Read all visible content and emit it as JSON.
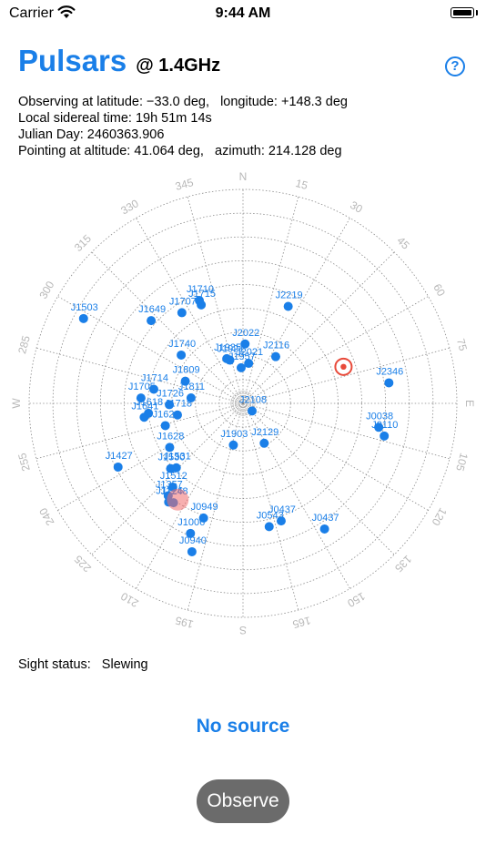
{
  "status_bar": {
    "carrier": "Carrier",
    "time": "9:44 AM",
    "wifi_icon": "wifi-icon",
    "battery_icon": "battery-icon"
  },
  "header": {
    "title": "Pulsars",
    "frequency": "@ 1.4GHz",
    "help_icon": "question-circle-icon",
    "help_label": "?"
  },
  "info": {
    "observing": "Observing at latitude: −33.0 deg,   longitude: +148.3 deg",
    "sidereal": "Local sidereal time: 19h 51m 14s",
    "julian": "Julian Day: 2460363.906",
    "pointing": "Pointing at altitude: 41.064 deg,   azimuth: 214.128 deg"
  },
  "sky_chart": {
    "accent_color": "#1a7fe8",
    "azimuth_labels": [
      "N",
      "15",
      "30",
      "45",
      "60",
      "75",
      "E",
      "105",
      "120",
      "135",
      "150",
      "165",
      "S",
      "195",
      "210",
      "225",
      "240",
      "255",
      "W",
      "285",
      "300",
      "315",
      "330",
      "345"
    ],
    "target_marker_icon": "crosshair-target-icon",
    "pointing_marker_icon": "pointing-dot-icon",
    "pointing": {
      "altitude": 41.064,
      "azimuth": 214.128
    },
    "target": {
      "altitude": 45.0,
      "azimuth": 70.0
    },
    "pulsars": [
      {
        "name": "J2022",
        "alt": 65,
        "az": 2
      },
      {
        "name": "J2219",
        "alt": 45,
        "az": 25
      },
      {
        "name": "J1710",
        "alt": 43,
        "az": 337
      },
      {
        "name": "J1715",
        "alt": 45,
        "az": 337
      },
      {
        "name": "J2021",
        "alt": 73,
        "az": 8
      },
      {
        "name": "J1957",
        "alt": 75,
        "az": 357
      },
      {
        "name": "J1707",
        "alt": 44,
        "az": 326
      },
      {
        "name": "J1921",
        "alt": 71,
        "az": 343
      },
      {
        "name": "J1935",
        "alt": 70,
        "az": 340
      },
      {
        "name": "J1649",
        "alt": 38,
        "az": 312
      },
      {
        "name": "J2116",
        "alt": 66,
        "az": 35
      },
      {
        "name": "J1503",
        "alt": 14,
        "az": 298
      },
      {
        "name": "J1740",
        "alt": 57,
        "az": 308
      },
      {
        "name": "J1809",
        "alt": 64,
        "az": 291
      },
      {
        "name": "J1714",
        "alt": 52,
        "az": 279
      },
      {
        "name": "J2346",
        "alt": 28,
        "az": 82
      },
      {
        "name": "J1811",
        "alt": 68,
        "az": 276
      },
      {
        "name": "J1705",
        "alt": 47,
        "az": 273
      },
      {
        "name": "J1726",
        "alt": 59,
        "az": 269
      },
      {
        "name": "J2108",
        "alt": 85,
        "az": 130
      },
      {
        "name": "J1618",
        "alt": 50,
        "az": 264
      },
      {
        "name": "J1718",
        "alt": 62,
        "az": 260
      },
      {
        "name": "J1641",
        "alt": 48,
        "az": 262
      },
      {
        "name": "J1622",
        "alt": 56,
        "az": 254
      },
      {
        "name": "J0038",
        "alt": 32,
        "az": 100
      },
      {
        "name": "J0110",
        "alt": 29,
        "az": 103
      },
      {
        "name": "J1628",
        "alt": 54,
        "az": 239
      },
      {
        "name": "J2129",
        "alt": 71,
        "az": 152
      },
      {
        "name": "J1427",
        "alt": 31,
        "az": 243
      },
      {
        "name": "J1530",
        "alt": 49,
        "az": 228
      },
      {
        "name": "J1531",
        "alt": 51,
        "az": 226
      },
      {
        "name": "J1903",
        "alt": 72,
        "az": 193
      },
      {
        "name": "J1512",
        "alt": 44,
        "az": 220
      },
      {
        "name": "J1357",
        "alt": 40,
        "az": 219
      },
      {
        "name": "J1248",
        "alt": 39,
        "az": 215
      },
      {
        "name": "J1226",
        "alt": 38,
        "az": 217
      },
      {
        "name": "J0949",
        "alt": 39,
        "az": 199
      },
      {
        "name": "J1006",
        "alt": 31,
        "az": 202
      },
      {
        "name": "J0543",
        "alt": 37,
        "az": 168
      },
      {
        "name": "J0437",
        "alt": 38,
        "az": 162
      },
      {
        "name": "J0437",
        "alt": 27,
        "az": 147
      },
      {
        "name": "J0940",
        "alt": 24,
        "az": 199
      }
    ]
  },
  "sight_status": {
    "label": "Sight status:",
    "value": "Slewing"
  },
  "source_label": "No source",
  "observe_button": "Observe"
}
